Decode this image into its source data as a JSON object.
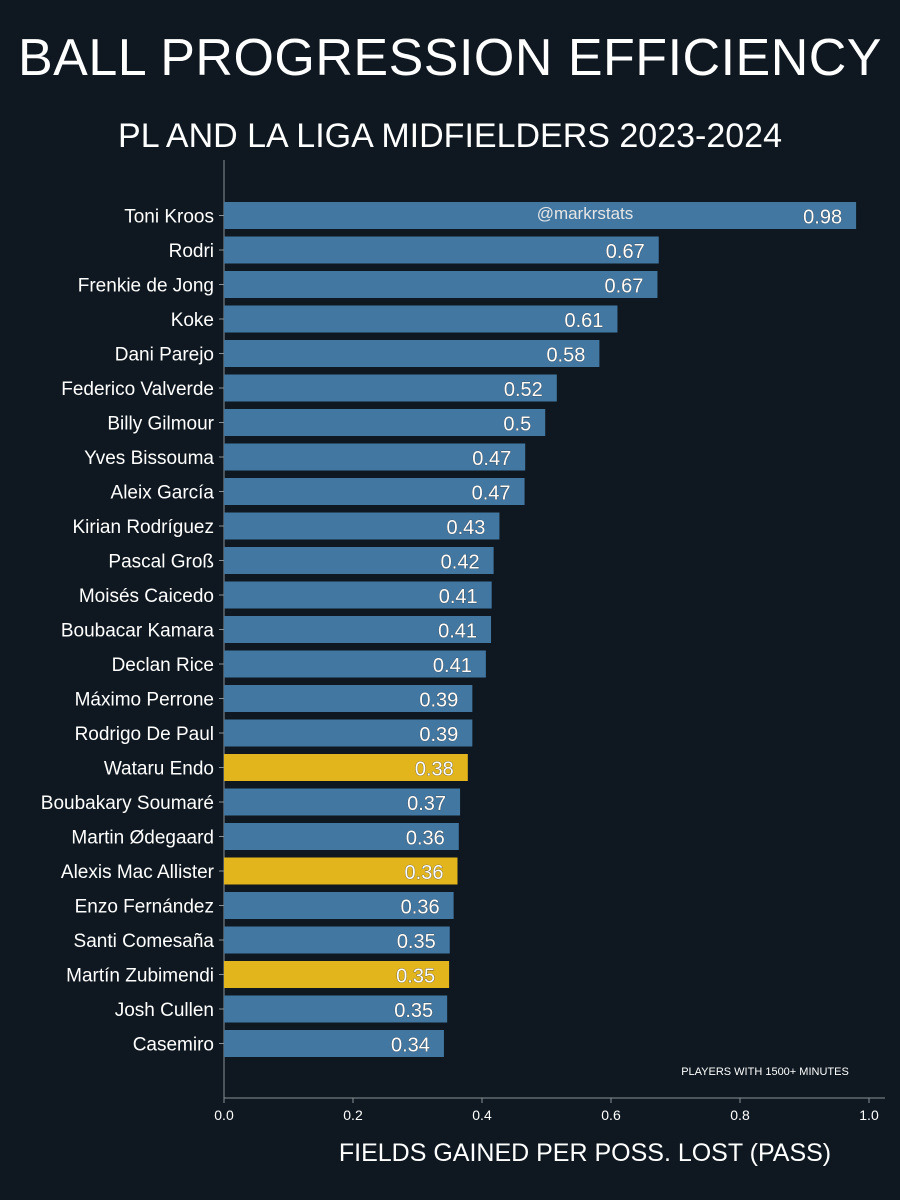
{
  "header": {
    "title": "BALL PROGRESSION EFFICIENCY",
    "subtitle": "PL AND LA LIGA MIDFIELDERS 2023-2024"
  },
  "watermark": "@markrstats",
  "note": "PLAYERS WITH 1500+ MINUTES",
  "colors": {
    "background": "#0f1820",
    "bar_default": "#4277a2",
    "bar_highlight": "#e2b51c",
    "axis": "#8a9299"
  },
  "chart_data": {
    "type": "bar",
    "orientation": "horizontal",
    "title": "BALL PROGRESSION EFFICIENCY",
    "subtitle": "PL AND LA LIGA MIDFIELDERS 2023-2024",
    "xlabel": "FIELDS GAINED PER POSS. LOST (PASS)",
    "ylabel": "",
    "xlim": [
      0,
      1.02
    ],
    "xticks": [
      "0.0",
      "0.2",
      "0.4",
      "0.6",
      "0.8",
      "1.0"
    ],
    "categories": [
      "Toni Kroos",
      "Rodri",
      "Frenkie de Jong",
      "Koke",
      "Dani Parejo",
      "Federico Valverde",
      "Billy Gilmour",
      "Yves Bissouma",
      "Aleix García",
      "Kirian Rodríguez",
      "Pascal Groß",
      "Moisés Caicedo",
      "Boubacar Kamara",
      "Declan Rice",
      "Máximo Perrone",
      "Rodrigo De Paul",
      "Wataru Endo",
      "Boubakary Soumaré",
      "Martin Ødegaard",
      "Alexis Mac Allister",
      "Enzo Fernández",
      "Santi Comesaña",
      "Martín Zubimendi",
      "Josh Cullen",
      "Casemiro"
    ],
    "values": [
      0.98,
      0.674,
      0.672,
      0.61,
      0.582,
      0.516,
      0.498,
      0.467,
      0.466,
      0.427,
      0.418,
      0.415,
      0.414,
      0.406,
      0.385,
      0.385,
      0.378,
      0.366,
      0.364,
      0.362,
      0.356,
      0.35,
      0.349,
      0.346,
      0.341
    ],
    "data_labels": [
      "0.98",
      "0.67",
      "0.67",
      "0.61",
      "0.58",
      "0.52",
      "0.5",
      "0.47",
      "0.47",
      "0.43",
      "0.42",
      "0.41",
      "0.41",
      "0.41",
      "0.39",
      "0.39",
      "0.38",
      "0.37",
      "0.36",
      "0.36",
      "0.36",
      "0.35",
      "0.35",
      "0.35",
      "0.34"
    ],
    "highlighted": [
      "Wataru Endo",
      "Alexis Mac Allister",
      "Martín Zubimendi"
    ],
    "grid": false,
    "legend": "none"
  }
}
